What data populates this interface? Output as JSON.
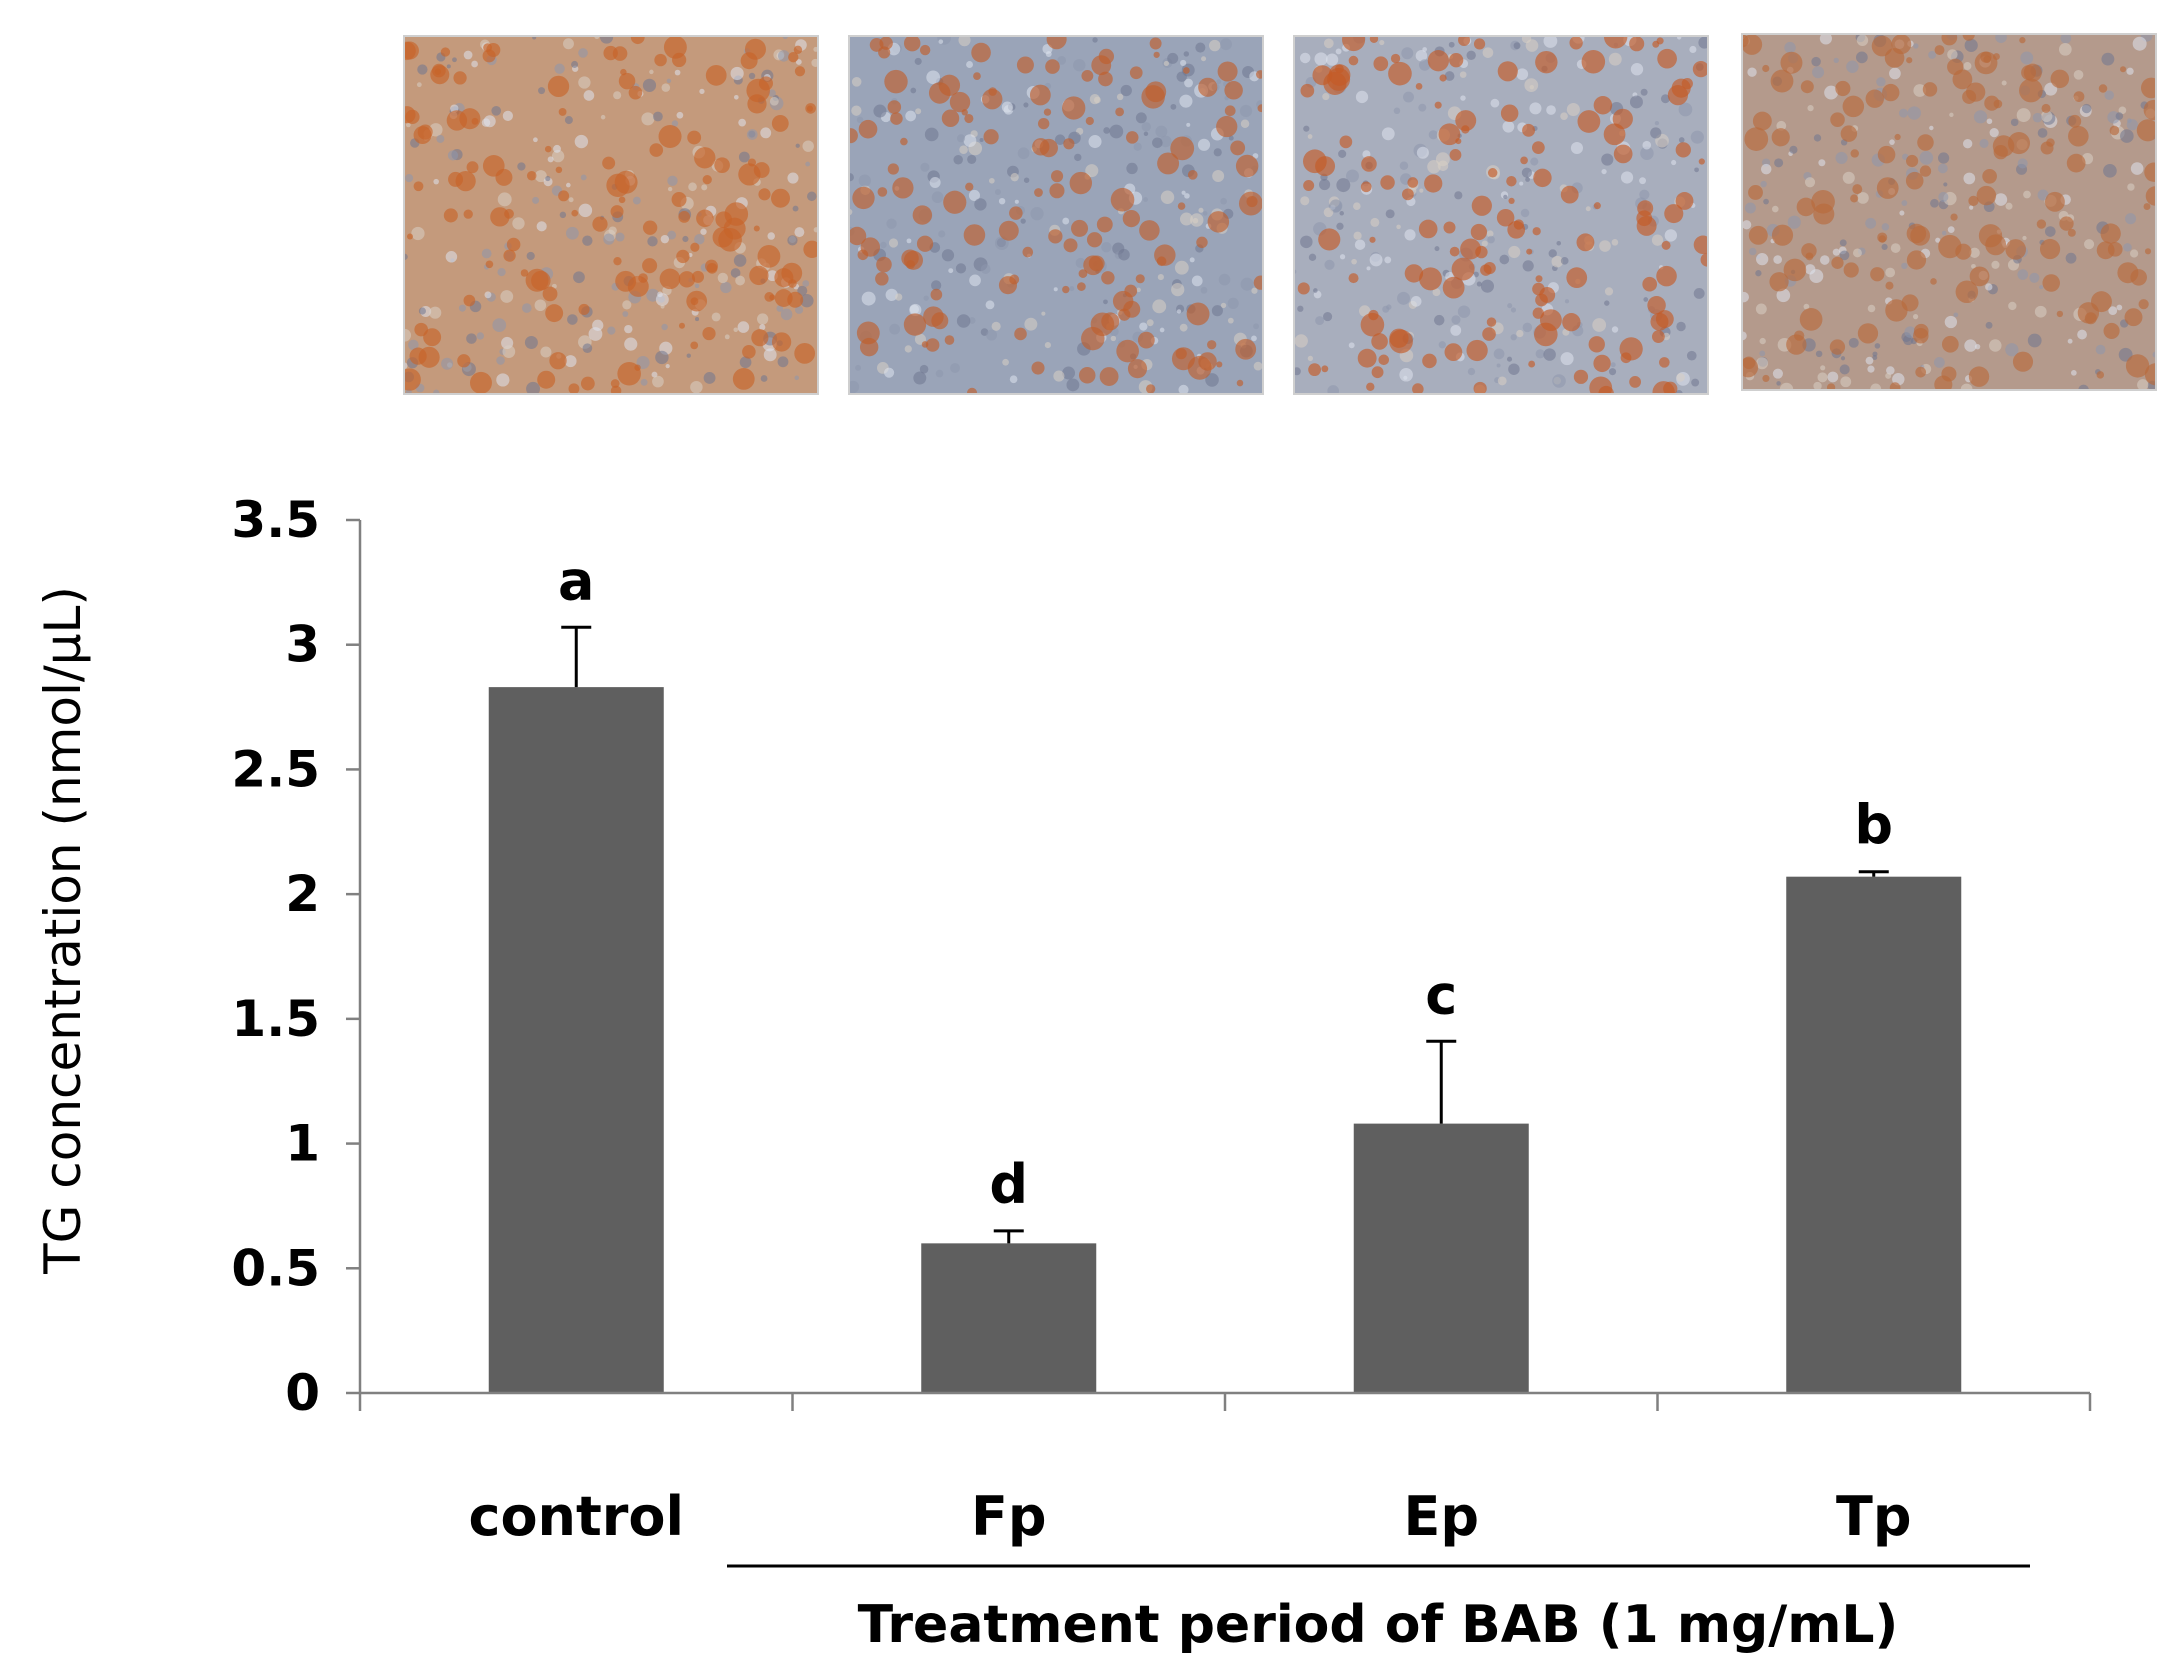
{
  "micrographs": [
    {
      "panel": "control",
      "base_color": "#c49a7c",
      "stain_color": "#c8642a"
    },
    {
      "panel": "Fp",
      "base_color": "#9aa4b8",
      "stain_color": "#c0602c"
    },
    {
      "panel": "Ep",
      "base_color": "#a8aebd",
      "stain_color": "#c55a26"
    },
    {
      "panel": "Tp",
      "base_color": "#b49a8c",
      "stain_color": "#b86a3c"
    }
  ],
  "chart_data": {
    "type": "bar",
    "categories": [
      "control",
      "Fp",
      "Ep",
      "Tp"
    ],
    "values": [
      2.83,
      0.6,
      1.08,
      2.07
    ],
    "errors": [
      0.24,
      0.05,
      0.33,
      0.02
    ],
    "significance": [
      "a",
      "d",
      "c",
      "b"
    ],
    "ylabel": "TG concentration (nmol/μL)",
    "group_label": "Treatment period of BAB (1 mg/mL)",
    "group_members": [
      "Fp",
      "Ep",
      "Tp"
    ],
    "ylim": [
      0,
      3.5
    ],
    "yticks": [
      0,
      0.5,
      1,
      1.5,
      2,
      2.5,
      3,
      3.5
    ],
    "ytick_labels": [
      "0",
      "0.5",
      "1",
      "1.5",
      "2",
      "2.5",
      "3",
      "3.5"
    ],
    "bar_color": "#5f5f5f",
    "grid": false,
    "legend": "none"
  }
}
